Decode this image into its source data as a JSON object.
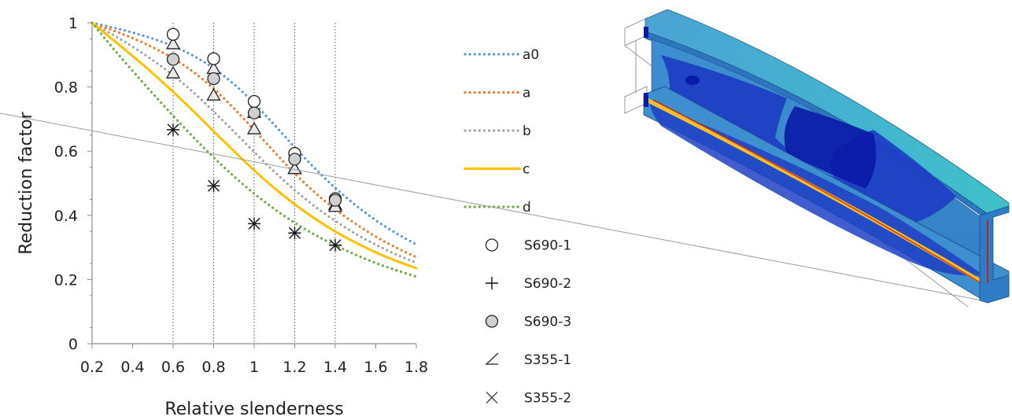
{
  "chart_data": {
    "type": "line",
    "xlabel": "Relative slenderness",
    "ylabel": "Reduction factor",
    "xlim": [
      0.2,
      1.8
    ],
    "ylim": [
      0,
      1
    ],
    "xticks": [
      "0.2",
      "0.4",
      "0.6",
      "0.8",
      "1",
      "1.2",
      "1.4",
      "1.6",
      "1.8"
    ],
    "yticks": [
      "0",
      "0.2",
      "0.4",
      "0.6",
      "0.8",
      "1"
    ],
    "vertical_gridlines_at": [
      0.6,
      0.8,
      1.0,
      1.2,
      1.4
    ],
    "legend_placement": "right",
    "series": [
      {
        "name": "a0",
        "kind": "curve",
        "style": "dotted",
        "color": "#5b9bd5",
        "x": [
          0.2,
          0.3,
          0.4,
          0.5,
          0.6,
          0.7,
          0.8,
          0.9,
          1.0,
          1.1,
          1.2,
          1.3,
          1.4,
          1.5,
          1.6,
          1.7,
          1.8
        ],
        "y": [
          1.0,
          0.986,
          0.97,
          0.951,
          0.928,
          0.898,
          0.86,
          0.81,
          0.75,
          0.682,
          0.612,
          0.545,
          0.485,
          0.431,
          0.384,
          0.344,
          0.309
        ]
      },
      {
        "name": "a",
        "kind": "curve",
        "style": "dotted",
        "color": "#ed7d31",
        "x": [
          0.2,
          0.3,
          0.4,
          0.5,
          0.6,
          0.7,
          0.8,
          0.9,
          1.0,
          1.1,
          1.2,
          1.3,
          1.4,
          1.5,
          1.6,
          1.7,
          1.8
        ],
        "y": [
          1.0,
          0.977,
          0.953,
          0.924,
          0.89,
          0.848,
          0.796,
          0.734,
          0.666,
          0.597,
          0.53,
          0.47,
          0.418,
          0.373,
          0.333,
          0.299,
          0.27
        ]
      },
      {
        "name": "b",
        "kind": "curve",
        "style": "dotted",
        "color": "#a5a5a5",
        "x": [
          0.2,
          0.3,
          0.4,
          0.5,
          0.6,
          0.7,
          0.8,
          0.9,
          1.0,
          1.1,
          1.2,
          1.3,
          1.4,
          1.5,
          1.6,
          1.7,
          1.8
        ],
        "y": [
          1.0,
          0.964,
          0.926,
          0.884,
          0.837,
          0.784,
          0.724,
          0.661,
          0.597,
          0.535,
          0.478,
          0.427,
          0.382,
          0.342,
          0.308,
          0.278,
          0.252
        ]
      },
      {
        "name": "c",
        "kind": "curve",
        "style": "solid",
        "color": "#ffc000",
        "x": [
          0.2,
          0.3,
          0.4,
          0.5,
          0.6,
          0.7,
          0.8,
          0.9,
          1.0,
          1.1,
          1.2,
          1.3,
          1.4,
          1.5,
          1.6,
          1.7,
          1.8
        ],
        "y": [
          1.0,
          0.949,
          0.897,
          0.843,
          0.785,
          0.725,
          0.662,
          0.6,
          0.54,
          0.484,
          0.434,
          0.389,
          0.349,
          0.315,
          0.284,
          0.258,
          0.235
        ]
      },
      {
        "name": "d",
        "kind": "curve",
        "style": "dotted",
        "color": "#70ad47",
        "x": [
          0.2,
          0.3,
          0.4,
          0.5,
          0.6,
          0.7,
          0.8,
          0.9,
          1.0,
          1.1,
          1.2,
          1.3,
          1.4,
          1.5,
          1.6,
          1.7,
          1.8
        ],
        "y": [
          1.0,
          0.923,
          0.85,
          0.779,
          0.71,
          0.643,
          0.58,
          0.521,
          0.467,
          0.419,
          0.376,
          0.339,
          0.306,
          0.277,
          0.251,
          0.229,
          0.209
        ]
      },
      {
        "name": "S690-1",
        "kind": "marker",
        "marker": "circle-open",
        "x": [
          0.6,
          0.8,
          1.0,
          1.2,
          1.4
        ],
        "y": [
          0.964,
          0.888,
          0.755,
          0.593,
          0.452
        ]
      },
      {
        "name": "S690-2",
        "kind": "marker",
        "marker": "plus",
        "x": [
          0.6,
          0.8,
          1.0,
          1.2,
          1.4
        ],
        "y": [
          0.667,
          0.492,
          0.374,
          0.345,
          0.307
        ]
      },
      {
        "name": "S690-3",
        "kind": "marker",
        "marker": "circle-filled",
        "x": [
          0.6,
          0.8,
          1.0,
          1.2,
          1.4
        ],
        "y": [
          0.886,
          0.826,
          0.719,
          0.575,
          0.447
        ]
      },
      {
        "name": "S355-1",
        "kind": "marker",
        "marker": "triangle",
        "x": [
          0.6,
          0.8,
          1.0,
          1.2,
          1.4
        ],
        "y": [
          0.934,
          0.857,
          0.72,
          0.545,
          0.433
        ],
        "x2": [
          0.6,
          0.8,
          1.0,
          1.2,
          1.4
        ],
        "y2": [
          0.843,
          0.774,
          0.669,
          0.545,
          0.427
        ]
      },
      {
        "name": "S355-2",
        "kind": "marker",
        "marker": "cross",
        "x": [
          0.6,
          0.8,
          1.0,
          1.2,
          1.4
        ],
        "y": [
          0.667,
          0.492,
          0.374,
          0.345,
          0.307
        ]
      }
    ]
  },
  "colors": {
    "fem_steel_blue": "#4aa3d4",
    "fem_dark_blue": "#1f3fc4",
    "fem_deep_blue": "#0a1aa8",
    "fem_cyan": "#3fc1c9",
    "fem_yellow": "#f3c02a",
    "fem_red": "#c8201a"
  },
  "illustration": "fem-ibeam-buckling"
}
